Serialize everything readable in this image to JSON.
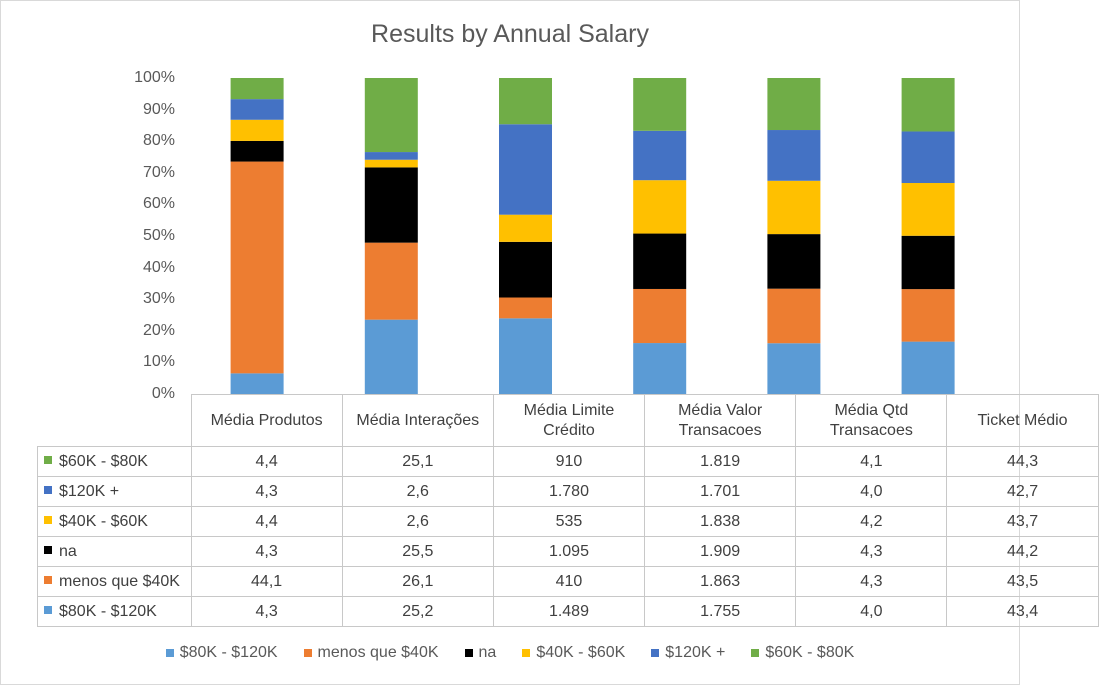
{
  "chart_data": {
    "type": "bar",
    "stacking": "percent",
    "title": "Results by Annual Salary",
    "categories": [
      "Média Produtos",
      "Média Interações",
      "Média Limite Crédito",
      "Média Valor Transacoes",
      "Média Qtd Transacoes",
      "Ticket Médio"
    ],
    "ylim": [
      0,
      100
    ],
    "ytick_labels": [
      "0%",
      "10%",
      "20%",
      "30%",
      "40%",
      "50%",
      "60%",
      "70%",
      "80%",
      "90%",
      "100%"
    ],
    "grid": false,
    "legend_position": "bottom",
    "data_table": true,
    "series": [
      {
        "name": "$80K - $120K",
        "color": "#5B9BD5",
        "values": [
          4.3,
          25.2,
          1489,
          1755,
          4.0,
          43.4
        ],
        "labels": [
          "4,3",
          "25,2",
          "1.489",
          "1.755",
          "4,0",
          "43,4"
        ]
      },
      {
        "name": "menos que $40K",
        "color": "#ED7D31",
        "values": [
          44.1,
          26.1,
          410,
          1863,
          4.3,
          43.5
        ],
        "labels": [
          "44,1",
          "26,1",
          "410",
          "1.863",
          "4,3",
          "43,5"
        ]
      },
      {
        "name": "na",
        "color": "#000000",
        "values": [
          4.3,
          25.5,
          1095,
          1909,
          4.3,
          44.2
        ],
        "labels": [
          "4,3",
          "25,5",
          "1.095",
          "1.909",
          "4,3",
          "44,2"
        ]
      },
      {
        "name": "$40K - $60K",
        "color": "#FFC000",
        "values": [
          4.4,
          2.6,
          535,
          1838,
          4.2,
          43.7
        ],
        "labels": [
          "4,4",
          "2,6",
          "535",
          "1.838",
          "4,2",
          "43,7"
        ]
      },
      {
        "name": "$120K +",
        "color": "#4472C4",
        "values": [
          4.3,
          2.6,
          1780,
          1701,
          4.0,
          42.7
        ],
        "labels": [
          "4,3",
          "2,6",
          "1.780",
          "1.701",
          "4,0",
          "42,7"
        ]
      },
      {
        "name": "$60K - $80K",
        "color": "#70AD47",
        "values": [
          4.4,
          25.1,
          910,
          1819,
          4.1,
          44.3
        ],
        "labels": [
          "4,4",
          "25,1",
          "910",
          "1.819",
          "4,1",
          "44,3"
        ]
      }
    ]
  }
}
